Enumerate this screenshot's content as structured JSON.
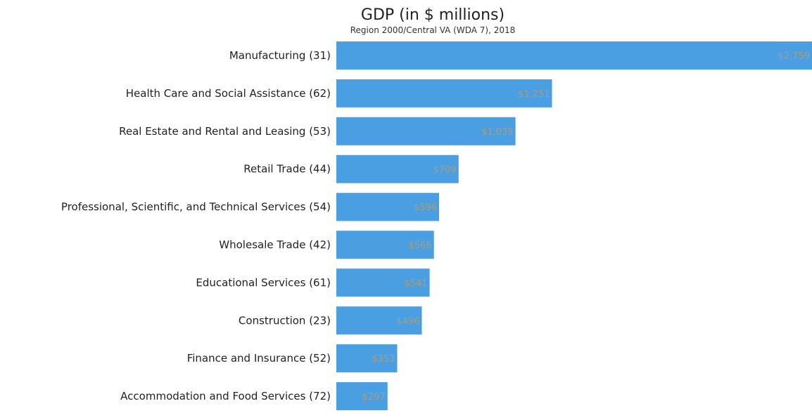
{
  "chart_data": {
    "type": "bar",
    "orientation": "horizontal",
    "title": "GDP (in $ millions)",
    "subtitle": "Region 2000/Central VA (WDA 7), 2018",
    "categories": [
      "Manufacturing (31)",
      "Health Care and Social Assistance (62)",
      "Real Estate and Rental and Leasing (53)",
      "Retail Trade (44)",
      "Professional, Scientific, and Technical Services (54)",
      "Wholesale Trade (42)",
      "Educational Services (61)",
      "Construction (23)",
      "Finance and Insurance (52)",
      "Accommodation and Food Services (72)"
    ],
    "values": [
      2759,
      1251,
      1039,
      709,
      596,
      566,
      541,
      496,
      353,
      297
    ],
    "value_labels": [
      "$2,759",
      "$1,251",
      "$1,039",
      "$709",
      "$596",
      "$566",
      "$541",
      "$496",
      "$353",
      "$297"
    ],
    "xlabel": "",
    "ylabel": "",
    "xlim": [
      0,
      2759
    ],
    "grid": false,
    "legend": "none",
    "bar_color": "#4a9ee2",
    "value_label_color": "#f0a030"
  }
}
